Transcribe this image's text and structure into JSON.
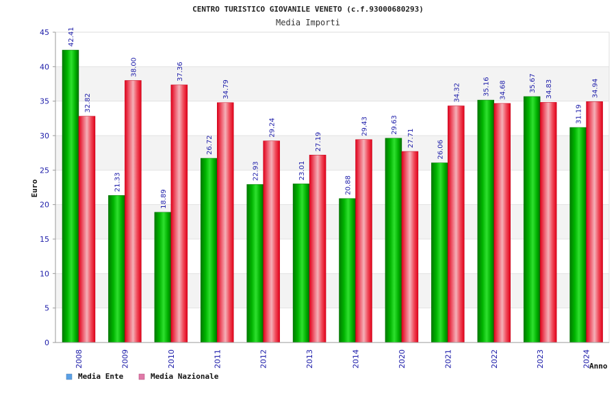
{
  "chart_data": {
    "type": "bar",
    "title": "CENTRO TURISTICO GIOVANILE VENETO (c.f.93000680293)",
    "subtitle": "Media Importi",
    "xlabel": "Anno",
    "ylabel": "Euro",
    "ylim": [
      0,
      45
    ],
    "yticks": [
      "0",
      "5",
      "10",
      "15",
      "20",
      "25",
      "30",
      "35",
      "40",
      "45"
    ],
    "categories": [
      "2008",
      "2009",
      "2010",
      "2011",
      "2012",
      "2013",
      "2014",
      "2020",
      "2021",
      "2022",
      "2023",
      "2024"
    ],
    "series": [
      {
        "name": "Media Ente",
        "color": "#00aa00",
        "legend_color": "#5aa0e6",
        "values": [
          42.41,
          21.33,
          18.89,
          26.72,
          22.93,
          23.01,
          20.88,
          29.63,
          26.06,
          35.16,
          35.67,
          31.19
        ],
        "labels": [
          "42.41",
          "21.33",
          "18.89",
          "26.72",
          "22.93",
          "23.01",
          "20.88",
          "29.63",
          "26.06",
          "35.16",
          "35.67",
          "31.19"
        ]
      },
      {
        "name": "Media Nazionale",
        "color": "#ee1122",
        "legend_color": "#e07aa8",
        "values": [
          32.82,
          38.0,
          37.36,
          34.79,
          29.24,
          27.19,
          29.43,
          27.71,
          34.32,
          34.68,
          34.83,
          34.94
        ],
        "labels": [
          "32.82",
          "38.00",
          "37.36",
          "34.79",
          "29.24",
          "27.19",
          "29.43",
          "27.71",
          "34.32",
          "34.68",
          "34.83",
          "34.94"
        ]
      }
    ],
    "grid": true,
    "legend_position": "bottom-left"
  }
}
